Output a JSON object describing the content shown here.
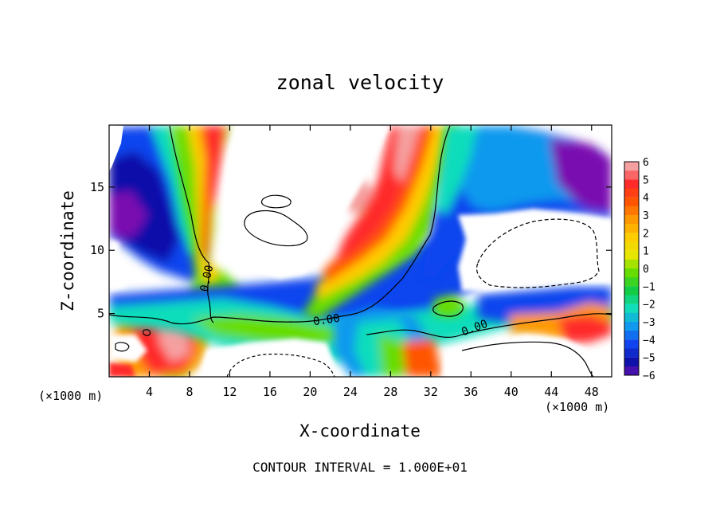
{
  "chart_data": {
    "type": "heatmap",
    "title": "zonal velocity",
    "xlabel": "X-coordinate",
    "ylabel": "Z-coordinate",
    "x_unit_label": "(×1000 m)",
    "x_unit_label_right": "(×1000 m)",
    "footer": "CONTOUR INTERVAL = 1.000E+01",
    "xlim": [
      0,
      50
    ],
    "ylim": [
      0,
      19.9
    ],
    "x_ticks": [
      4,
      8,
      12,
      16,
      20,
      24,
      28,
      32,
      36,
      40,
      44,
      48
    ],
    "y_ticks": [
      5,
      10,
      15
    ],
    "colorbar": {
      "levels": [
        6,
        5,
        4,
        3,
        2,
        1,
        0,
        -1,
        -2,
        -3,
        -4,
        -5,
        -6
      ],
      "colors": [
        "#f5a0a0",
        "#ff2a2a",
        "#ff5500",
        "#ff9900",
        "#ffcc00",
        "#e6e600",
        "#66dd00",
        "#11cc44",
        "#11ddbb",
        "#1199ee",
        "#1144ee",
        "#1010aa",
        "#7a10b0"
      ]
    },
    "contour_labels": [
      "0.00",
      "0.00",
      "0.00"
    ],
    "zero_contour_points": [
      [
        0,
        4.9
      ],
      [
        8,
        4.4
      ],
      [
        15,
        4.8
      ],
      [
        21,
        4.3
      ],
      [
        26,
        5.4
      ],
      [
        33,
        3.1
      ],
      [
        42,
        4.3
      ],
      [
        50,
        4.8
      ]
    ]
  }
}
